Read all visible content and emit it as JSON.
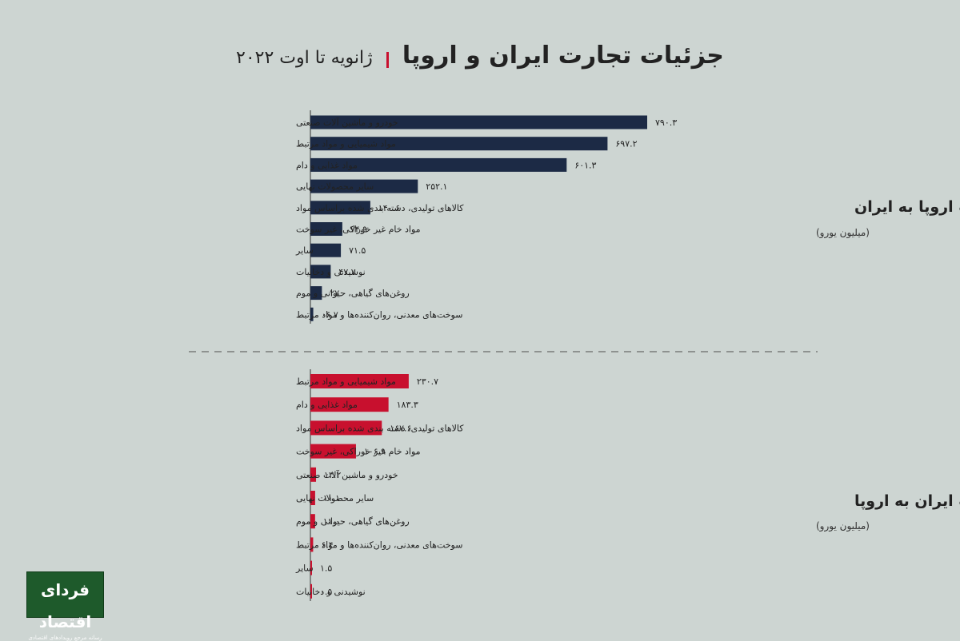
{
  "header": {
    "title": "جزئیات تجارت ایران و اروپا",
    "subtitle": "ژانویه تا اوت ۲۰۲۲"
  },
  "colors": {
    "export_eu_to_iran": "#1c2a45",
    "export_iran_to_eu": "#c8102e",
    "background": "#cdd5d2"
  },
  "logo": {
    "name": "فردای اقتصاد",
    "tagline": "رسانه مرجع رویدادهای اقتصادی"
  },
  "chart_data": [
    {
      "type": "bar",
      "orientation": "horizontal",
      "title": "صادرات اروپا به ایران",
      "unit": "(میلیون یورو)",
      "categories": [
        "خودرو و ماشین آلات صنعتی",
        "مواد شیمیایی و مواد مرتبط",
        "مواد غذایی و دام",
        "سایر محصولات نهایی",
        "کالاهای تولیدی، دسته بندی شده براساس مواد",
        "مواد خام غیر خوراکی، غیر سوخت",
        "سایر",
        "نوشیدنی و دخانیات",
        "روغن‌های گیاهی، حیوانی و موم",
        "سوخت‌های معدنی، روان‌کننده‌ها و مواد مرتبط"
      ],
      "values": [
        790.3,
        697.2,
        601.3,
        252.1,
        140.6,
        74.9,
        71.5,
        47.7,
        27.0,
        6.7
      ],
      "value_labels": [
        "۷۹۰.۳",
        "۶۹۷.۲",
        "۶۰۱.۳",
        "۲۵۲.۱",
        "۱۴۰.۶",
        "۷۴.۹",
        "۷۱.۵",
        "۴۷.۷",
        "۲۷.۰",
        "۰۶.۷"
      ]
    },
    {
      "type": "bar",
      "orientation": "horizontal",
      "title": "صادرات ایران به اروپا",
      "unit": "(میلیون یورو)",
      "categories": [
        "مواد شیمیایی و مواد مرتبط",
        "مواد غذایی و دام",
        "کالاهای تولیدی، دسته بندی شده براساس مواد",
        "مواد خام غیر خوراکی، غیر سوخت",
        "خودرو و ماشین آلات صنعتی",
        "سایر محصولات نهایی",
        "روغن‌های گیاهی، حیوانی و موم",
        "سوخت‌های معدنی، روان‌کننده‌ها و مواد مرتبط",
        "سایر",
        "نوشیدنی و دخانیات"
      ],
      "values": [
        230.7,
        183.3,
        167.6,
        106.9,
        13.2,
        11.1,
        11.0,
        6.4,
        1.5,
        0.5
      ],
      "value_labels": [
        "۲۳۰.۷",
        "۱۸۳.۳",
        "۱۶۷.۶",
        "۱۰۶.۹",
        "۱۳.۲",
        "۱۱.۱",
        "۱۱.۰",
        "۶.۴",
        "۱.۵",
        "۰.۵"
      ]
    }
  ]
}
